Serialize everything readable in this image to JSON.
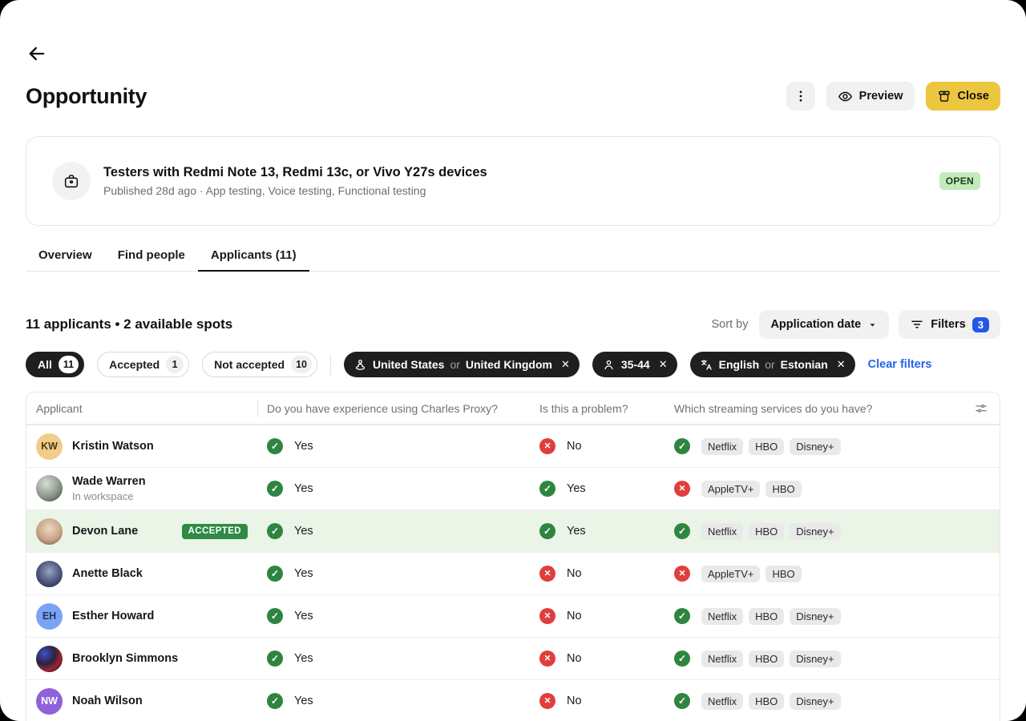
{
  "page": {
    "title": "Opportunity"
  },
  "actions": {
    "preview": "Preview",
    "close": "Close"
  },
  "card": {
    "title": "Testers with Redmi Note 13, Redmi 13c, or Vivo Y27s devices",
    "meta": "Published 28d ago · App testing, Voice testing, Functional testing",
    "status": "OPEN",
    "status_bg": "#c2eaba"
  },
  "tabs": [
    {
      "label": "Overview"
    },
    {
      "label": "Find people"
    },
    {
      "label": "Applicants (11)"
    }
  ],
  "toolbar": {
    "summary": "11 applicants • 2 available spots",
    "sort_by": "Sort by",
    "sort_value": "Application date",
    "filters": "Filters",
    "filters_count": "3"
  },
  "segments": [
    {
      "label": "All",
      "count": "11"
    },
    {
      "label": "Accepted",
      "count": "1"
    },
    {
      "label": "Not accepted",
      "count": "10"
    }
  ],
  "filter_chips": [
    {
      "icon": "location-icon",
      "a": "United States",
      "or": "or",
      "b": "United Kingdom",
      "remove": "✕"
    },
    {
      "icon": "age-icon",
      "a": "35-44",
      "or": "",
      "b": "",
      "remove": "✕"
    },
    {
      "icon": "language-icon",
      "a": "English",
      "or": "or",
      "b": "Estonian",
      "remove": "✕"
    }
  ],
  "clear_filters": "Clear filters",
  "colors": {
    "accent_yellow": "#ecc63f",
    "accent_blue": "#2457e8",
    "positive_green": "#2e8540",
    "negative_red": "#e03e3e",
    "accepted_green": "#2f8a44",
    "row_highlight": "#eaf4e7"
  },
  "table": {
    "columns": [
      "Applicant",
      "Do you have experience using Charles Proxy?",
      "Is this a problem?",
      "Which streaming services do you have?"
    ],
    "rows": [
      {
        "name": "Kristin Watson",
        "initials": "KW",
        "avatar_bg": "#f1cc8a",
        "initials_color": "#4c3a14",
        "subtitle": "",
        "badge": "",
        "q1": {
          "value": "Yes",
          "state": "yes"
        },
        "q2": {
          "value": "No",
          "state": "no"
        },
        "services": {
          "state": "yes",
          "tags": [
            "Netflix",
            "HBO",
            "Disney+"
          ]
        }
      },
      {
        "name": "Wade Warren",
        "initials": "",
        "avatar_bg": "radial-gradient(circle at 38% 32%, #d9ded4, #8a988a 55%, #49544a 90%)",
        "initials_color": "#fff",
        "subtitle": "In workspace",
        "badge": "",
        "q1": {
          "value": "Yes",
          "state": "yes"
        },
        "q2": {
          "value": "Yes",
          "state": "yes"
        },
        "services": {
          "state": "no",
          "tags": [
            "AppleTV+",
            "HBO"
          ]
        }
      },
      {
        "name": "Devon Lane",
        "initials": "",
        "avatar_bg": "radial-gradient(circle at 50% 38%, #ecd8c2, #c8a586 55%, #7d5f46 95%)",
        "initials_color": "#fff",
        "subtitle": "",
        "badge": "ACCEPTED",
        "q1": {
          "value": "Yes",
          "state": "yes"
        },
        "q2": {
          "value": "Yes",
          "state": "yes"
        },
        "services": {
          "state": "yes",
          "tags": [
            "Netflix",
            "HBO",
            "Disney+"
          ]
        }
      },
      {
        "name": "Anette Black",
        "initials": "",
        "avatar_bg": "radial-gradient(circle at 50% 40%, #9aa3c4, #4b5478 55%, #222740 95%)",
        "initials_color": "#fff",
        "subtitle": "",
        "badge": "",
        "q1": {
          "value": "Yes",
          "state": "yes"
        },
        "q2": {
          "value": "No",
          "state": "no"
        },
        "services": {
          "state": "no",
          "tags": [
            "AppleTV+",
            "HBO"
          ]
        }
      },
      {
        "name": "Esther Howard",
        "initials": "EH",
        "avatar_bg": "#7ba3f5",
        "initials_color": "#27335a",
        "subtitle": "",
        "badge": "",
        "q1": {
          "value": "Yes",
          "state": "yes"
        },
        "q2": {
          "value": "No",
          "state": "no"
        },
        "services": {
          "state": "yes",
          "tags": [
            "Netflix",
            "HBO",
            "Disney+"
          ]
        }
      },
      {
        "name": "Brooklyn Simmons",
        "initials": "",
        "avatar_bg": "radial-gradient(circle at 32% 30%, #4050c8, #2b2340 40%, #9c2430 65%, #140d17 95%)",
        "initials_color": "#fff",
        "subtitle": "",
        "badge": "",
        "q1": {
          "value": "Yes",
          "state": "yes"
        },
        "q2": {
          "value": "No",
          "state": "no"
        },
        "services": {
          "state": "yes",
          "tags": [
            "Netflix",
            "HBO",
            "Disney+"
          ]
        }
      },
      {
        "name": "Noah Wilson",
        "initials": "NW",
        "avatar_bg": "#9061da",
        "initials_color": "#ffffff",
        "subtitle": "",
        "badge": "",
        "q1": {
          "value": "Yes",
          "state": "yes"
        },
        "q2": {
          "value": "No",
          "state": "no"
        },
        "services": {
          "state": "yes",
          "tags": [
            "Netflix",
            "HBO",
            "Disney+"
          ]
        }
      }
    ]
  }
}
